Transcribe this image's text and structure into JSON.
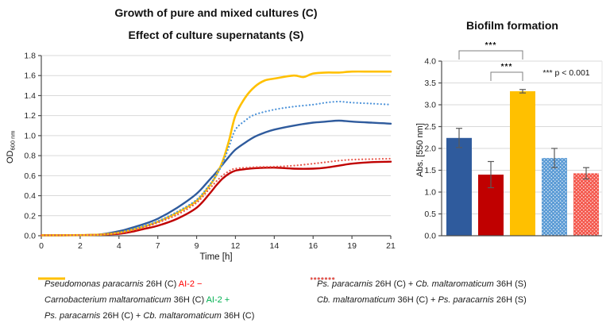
{
  "colors": {
    "blue": "#2F5B9D",
    "dark_red": "#C00000",
    "yellow": "#FFC000",
    "light_blue": "#4D93D9",
    "light_red": "#E8574B",
    "bar_light_blue": "#5B9BD5",
    "bar_light_red": "#F4594E",
    "grid": "#D9D9D9",
    "axis": "#4d4d4d",
    "error_bar": "#595959",
    "bracket": "#7F7F7F",
    "ai2_minus_red": "#FF0000",
    "ai2_plus_green": "#00B050"
  },
  "chart_data": [
    {
      "id": "growth",
      "type": "line",
      "title_line1": "Growth of pure and mixed cultures (C)",
      "title_line2": "Effect of culture supernatants (S)",
      "xlabel": "Time [h]",
      "ylabel_main": "OD",
      "ylabel_sub": "600 nm",
      "x_ticks": [
        0,
        2,
        4,
        7,
        9,
        12,
        14,
        16,
        19,
        21
      ],
      "ylim": [
        0,
        1.8
      ],
      "y_step": 0.2,
      "grid": true,
      "series": [
        {
          "name": "Pseudomonas paracarnis 26H (C) AI-2 −",
          "style": "solid",
          "color": "#2F5B9D",
          "width": 2.4,
          "points": [
            [
              0,
              0.005
            ],
            [
              1,
              0.005
            ],
            [
              2,
              0.006
            ],
            [
              3,
              0.012
            ],
            [
              4,
              0.045
            ],
            [
              4.5,
              0.06
            ],
            [
              5,
              0.08
            ],
            [
              6,
              0.12
            ],
            [
              7,
              0.17
            ],
            [
              8,
              0.28
            ],
            [
              9,
              0.42
            ],
            [
              10,
              0.56
            ],
            [
              10.5,
              0.63
            ],
            [
              11,
              0.71
            ],
            [
              11.5,
              0.79
            ],
            [
              12,
              0.86
            ],
            [
              12.5,
              0.93
            ],
            [
              13,
              0.99
            ],
            [
              13.5,
              1.03
            ],
            [
              14,
              1.06
            ],
            [
              15,
              1.1
            ],
            [
              16,
              1.13
            ],
            [
              17,
              1.14
            ],
            [
              18,
              1.15
            ],
            [
              19,
              1.14
            ],
            [
              20,
              1.13
            ],
            [
              21,
              1.12
            ]
          ]
        },
        {
          "name": "Carnobacterium maltaromaticum 36H (C) AI-2 +",
          "style": "solid",
          "color": "#C00000",
          "width": 2.4,
          "points": [
            [
              0,
              0.005
            ],
            [
              1,
              0.005
            ],
            [
              2,
              0.006
            ],
            [
              3,
              0.01
            ],
            [
              4,
              0.02
            ],
            [
              5,
              0.04
            ],
            [
              6,
              0.07
            ],
            [
              7,
              0.1
            ],
            [
              8,
              0.17
            ],
            [
              9,
              0.28
            ],
            [
              10,
              0.42
            ],
            [
              10.5,
              0.5
            ],
            [
              11,
              0.57
            ],
            [
              11.5,
              0.62
            ],
            [
              12,
              0.65
            ],
            [
              12.5,
              0.665
            ],
            [
              13,
              0.675
            ],
            [
              14,
              0.68
            ],
            [
              15,
              0.67
            ],
            [
              16,
              0.67
            ],
            [
              17,
              0.68
            ],
            [
              18,
              0.7
            ],
            [
              19,
              0.72
            ],
            [
              20,
              0.735
            ],
            [
              21,
              0.74
            ]
          ]
        },
        {
          "name": "Ps. paracarnis 26H (C) + Cb. maltaromaticum 36H (C)",
          "style": "solid",
          "color": "#FFC000",
          "width": 2.6,
          "points": [
            [
              0,
              0.005
            ],
            [
              1,
              0.005
            ],
            [
              2,
              0.006
            ],
            [
              3,
              0.01
            ],
            [
              4,
              0.03
            ],
            [
              5,
              0.06
            ],
            [
              6,
              0.095
            ],
            [
              7,
              0.14
            ],
            [
              8,
              0.23
            ],
            [
              9,
              0.35
            ],
            [
              10,
              0.5
            ],
            [
              10.5,
              0.6
            ],
            [
              11,
              0.74
            ],
            [
              11.5,
              0.95
            ],
            [
              12,
              1.2
            ],
            [
              12.5,
              1.38
            ],
            [
              13,
              1.49
            ],
            [
              13.5,
              1.55
            ],
            [
              14,
              1.57
            ],
            [
              15,
              1.6
            ],
            [
              15.5,
              1.585
            ],
            [
              16,
              1.62
            ],
            [
              17,
              1.63
            ],
            [
              18,
              1.63
            ],
            [
              19,
              1.64
            ],
            [
              20,
              1.64
            ],
            [
              21,
              1.64
            ]
          ]
        },
        {
          "name": "Ps. paracarnis 26H (C) + Cb. maltaromaticum 36H (S)",
          "style": "dotted",
          "color": "#4D93D9",
          "width": 2.2,
          "points": [
            [
              0,
              0.005
            ],
            [
              1,
              0.005
            ],
            [
              2,
              0.006
            ],
            [
              3,
              0.01
            ],
            [
              4,
              0.03
            ],
            [
              5,
              0.065
            ],
            [
              6,
              0.1
            ],
            [
              7,
              0.145
            ],
            [
              8,
              0.24
            ],
            [
              9,
              0.36
            ],
            [
              10,
              0.51
            ],
            [
              10.5,
              0.6
            ],
            [
              11,
              0.72
            ],
            [
              11.5,
              0.89
            ],
            [
              12,
              1.06
            ],
            [
              12.5,
              1.15
            ],
            [
              13,
              1.21
            ],
            [
              14,
              1.26
            ],
            [
              15,
              1.29
            ],
            [
              16,
              1.31
            ],
            [
              17,
              1.33
            ],
            [
              18,
              1.34
            ],
            [
              19,
              1.33
            ],
            [
              20,
              1.32
            ],
            [
              21,
              1.31
            ]
          ]
        },
        {
          "name": "Cb. maltaromaticum 36H (C) + Ps. paracarnis 26H (S)",
          "style": "dotted",
          "color": "#E8574B",
          "width": 2.2,
          "points": [
            [
              0,
              0.005
            ],
            [
              1,
              0.005
            ],
            [
              2,
              0.006
            ],
            [
              3,
              0.01
            ],
            [
              4,
              0.025
            ],
            [
              5,
              0.05
            ],
            [
              6,
              0.085
            ],
            [
              7,
              0.13
            ],
            [
              8,
              0.21
            ],
            [
              9,
              0.33
            ],
            [
              10,
              0.47
            ],
            [
              10.5,
              0.54
            ],
            [
              11,
              0.6
            ],
            [
              11.5,
              0.645
            ],
            [
              12,
              0.67
            ],
            [
              13,
              0.685
            ],
            [
              14,
              0.69
            ],
            [
              15,
              0.7
            ],
            [
              16,
              0.72
            ],
            [
              17,
              0.735
            ],
            [
              18,
              0.75
            ],
            [
              19,
              0.76
            ],
            [
              20,
              0.765
            ],
            [
              21,
              0.77
            ]
          ]
        }
      ]
    },
    {
      "id": "biofilm",
      "type": "bar",
      "title": "Biofilm formation",
      "ylabel": "Abs. [550 nm]",
      "ylim": [
        0,
        4.0
      ],
      "y_step": 0.5,
      "grid": true,
      "bars": [
        {
          "value": 2.24,
          "err": 0.22,
          "color": "#2F5B9D",
          "pattern": "solid"
        },
        {
          "value": 1.4,
          "err": 0.3,
          "color": "#C00000",
          "pattern": "solid"
        },
        {
          "value": 3.31,
          "err": 0.04,
          "color": "#FFC000",
          "pattern": "solid"
        },
        {
          "value": 1.78,
          "err": 0.22,
          "color": "#5B9BD5",
          "pattern": "dots"
        },
        {
          "value": 1.43,
          "err": 0.13,
          "color": "#F4594E",
          "pattern": "dots"
        }
      ],
      "significance": [
        {
          "from": 0,
          "to": 2,
          "label": "***"
        },
        {
          "from": 1,
          "to": 2,
          "label": "***"
        }
      ],
      "note": "*** p < 0.001"
    }
  ],
  "legend": {
    "left": [
      {
        "swatch": "solid",
        "color": "#2F5B9D",
        "parts": [
          {
            "t": "Pseudomonas paracarnis",
            "s": "i"
          },
          {
            "t": " 26H (C) ",
            "s": "n"
          },
          {
            "t": "AI-2 −",
            "s": "red"
          }
        ]
      },
      {
        "swatch": "solid",
        "color": "#C00000",
        "parts": [
          {
            "t": "Carnobacterium maltaromaticum",
            "s": "i"
          },
          {
            "t": " 36H (C) ",
            "s": "n"
          },
          {
            "t": "AI-2 +",
            "s": "green"
          }
        ]
      },
      {
        "swatch": "solid",
        "color": "#FFC000",
        "parts": [
          {
            "t": "Ps. paracarnis",
            "s": "i"
          },
          {
            "t": " 26H (C) + ",
            "s": "n"
          },
          {
            "t": "Cb. maltaromaticum",
            "s": "i"
          },
          {
            "t": " 36H (C)",
            "s": "n"
          }
        ]
      }
    ],
    "right": [
      {
        "swatch": "dotted",
        "color": "#4D93D9",
        "parts": [
          {
            "t": "Ps. paracarnis",
            "s": "i"
          },
          {
            "t": " 26H (C) + ",
            "s": "n"
          },
          {
            "t": "Cb. maltaromaticum",
            "s": "i"
          },
          {
            "t": " 36H (S)",
            "s": "n"
          }
        ]
      },
      {
        "swatch": "dotted",
        "color": "#E8574B",
        "parts": [
          {
            "t": "Cb. maltaromaticum",
            "s": "i"
          },
          {
            "t": " 36H (C) + ",
            "s": "n"
          },
          {
            "t": "Ps. paracarnis",
            "s": "i"
          },
          {
            "t": " 26H (S)",
            "s": "n"
          }
        ]
      }
    ]
  }
}
